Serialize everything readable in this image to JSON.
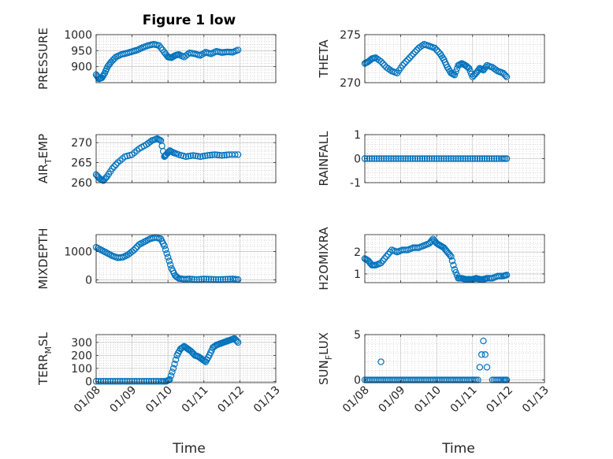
{
  "figure_title": "Figure 1 low",
  "colors": {
    "marker": "#0072BD",
    "axis": "#262626",
    "grid": "#b9b9b9",
    "background": "#ffffff"
  },
  "xlabel": "Time",
  "chart_data": [
    {
      "id": "pressure",
      "type": "scatter",
      "title": "Figure 1 low",
      "ylabel_parts": [
        "PRESSURE"
      ],
      "xlabel": "",
      "ylim": [
        850,
        1000
      ],
      "yticks": [
        900,
        950,
        1000
      ],
      "ytick_labels": [
        "900",
        "950",
        "1000"
      ],
      "xlim": [
        0,
        5
      ],
      "xticks": [
        0,
        1,
        2,
        3,
        4,
        5
      ],
      "xtick_labels": [],
      "series": [
        {
          "name": "PRESSURE",
          "x": [
            0.0,
            0.08,
            0.16,
            0.24,
            0.32,
            0.42,
            0.55,
            0.7,
            0.85,
            1.0,
            1.15,
            1.3,
            1.45,
            1.6,
            1.75,
            1.9,
            2.0,
            2.1,
            2.2,
            2.3,
            2.45,
            2.6,
            2.75,
            2.9,
            3.05,
            3.2,
            3.35,
            3.5,
            3.65,
            3.8,
            3.95
          ],
          "y": [
            875,
            862,
            865,
            880,
            900,
            915,
            930,
            938,
            942,
            947,
            952,
            960,
            966,
            970,
            966,
            945,
            930,
            928,
            935,
            938,
            930,
            943,
            940,
            935,
            945,
            940,
            948,
            944,
            946,
            945,
            952
          ]
        }
      ]
    },
    {
      "id": "theta",
      "type": "scatter",
      "ylabel_parts": [
        "THETA"
      ],
      "xlabel": "",
      "ylim": [
        270,
        275
      ],
      "yticks": [
        270,
        275
      ],
      "ytick_labels": [
        "270",
        "275"
      ],
      "xlim": [
        0,
        5
      ],
      "xticks": [
        0,
        1,
        2,
        3,
        4,
        5
      ],
      "xtick_labels": [],
      "series": [
        {
          "name": "THETA",
          "x": [
            0.0,
            0.1,
            0.2,
            0.3,
            0.45,
            0.6,
            0.75,
            0.9,
            1.05,
            1.2,
            1.35,
            1.5,
            1.65,
            1.8,
            1.95,
            2.1,
            2.2,
            2.3,
            2.4,
            2.5,
            2.6,
            2.7,
            2.8,
            2.9,
            3.0,
            3.1,
            3.2,
            3.3,
            3.4,
            3.55,
            3.7,
            3.85,
            3.95
          ],
          "y": [
            272.0,
            272.2,
            272.5,
            272.6,
            272.2,
            271.6,
            271.2,
            271.0,
            271.8,
            272.4,
            273.0,
            273.6,
            274.0,
            273.8,
            273.6,
            273.0,
            272.4,
            271.6,
            271.0,
            270.8,
            271.8,
            272.0,
            271.8,
            271.5,
            270.6,
            271.0,
            271.5,
            271.3,
            271.8,
            271.6,
            271.2,
            271.0,
            270.6
          ]
        }
      ]
    },
    {
      "id": "airtemp",
      "type": "scatter",
      "ylabel_parts": [
        "AIR",
        "T",
        "EMP"
      ],
      "xlabel": "",
      "ylim": [
        260,
        272
      ],
      "yticks": [
        260,
        265,
        270
      ],
      "ytick_labels": [
        "260",
        "265",
        "270"
      ],
      "xlim": [
        0,
        5
      ],
      "xticks": [
        0,
        1,
        2,
        3,
        4,
        5
      ],
      "xtick_labels": [],
      "series": [
        {
          "name": "AIRTEMP",
          "x": [
            0.0,
            0.1,
            0.2,
            0.3,
            0.45,
            0.6,
            0.8,
            1.0,
            1.2,
            1.4,
            1.55,
            1.7,
            1.8,
            1.9,
            1.95,
            2.05,
            2.15,
            2.3,
            2.5,
            2.7,
            2.9,
            3.1,
            3.3,
            3.5,
            3.7,
            3.95
          ],
          "y": [
            262.0,
            261.0,
            260.5,
            261.5,
            263.5,
            265.0,
            266.5,
            267.0,
            268.5,
            269.5,
            270.5,
            271.0,
            270.5,
            266.5,
            267.0,
            268.0,
            267.5,
            267.0,
            266.5,
            266.8,
            266.5,
            266.8,
            267.0,
            266.8,
            267.0,
            267.0
          ]
        }
      ]
    },
    {
      "id": "rainfall",
      "type": "scatter",
      "ylabel_parts": [
        "RAINFALL"
      ],
      "xlabel": "",
      "ylim": [
        -1,
        1
      ],
      "yticks": [
        -1,
        0,
        1
      ],
      "ytick_labels": [
        "-1",
        "0",
        "1"
      ],
      "xlim": [
        0,
        5
      ],
      "xticks": [
        0,
        1,
        2,
        3,
        4,
        5
      ],
      "xtick_labels": [],
      "series": [
        {
          "name": "RAINFALL",
          "x": [
            0.0,
            0.2,
            0.4,
            0.6,
            0.8,
            1.0,
            1.2,
            1.4,
            1.6,
            1.8,
            2.0,
            2.2,
            2.4,
            2.6,
            2.8,
            3.0,
            3.2,
            3.4,
            3.6,
            3.8,
            3.95
          ],
          "y": [
            0,
            0,
            0,
            0,
            0,
            0,
            0,
            0,
            0,
            0,
            0,
            0,
            0,
            0,
            0,
            0,
            0,
            0,
            0,
            0,
            0
          ]
        }
      ]
    },
    {
      "id": "mixdepth",
      "type": "scatter",
      "ylabel_parts": [
        "MIXDEPTH"
      ],
      "xlabel": "",
      "ylim": [
        -100,
        1600
      ],
      "yticks": [
        0,
        1000
      ],
      "ytick_labels": [
        "0",
        "1000"
      ],
      "xlim": [
        0,
        5
      ],
      "xticks": [
        0,
        1,
        2,
        3,
        4,
        5
      ],
      "xtick_labels": [],
      "series": [
        {
          "name": "MIXDEPTH",
          "x": [
            0.0,
            0.15,
            0.3,
            0.45,
            0.6,
            0.75,
            0.9,
            1.05,
            1.2,
            1.35,
            1.5,
            1.65,
            1.8,
            1.9,
            2.0,
            2.1,
            2.2,
            2.3,
            2.45,
            2.6,
            2.8,
            3.0,
            3.2,
            3.4,
            3.6,
            3.8,
            3.95
          ],
          "y": [
            1150,
            1050,
            950,
            850,
            780,
            800,
            900,
            1050,
            1250,
            1350,
            1450,
            1500,
            1450,
            1200,
            800,
            400,
            150,
            50,
            20,
            30,
            10,
            30,
            20,
            10,
            20,
            30,
            10
          ]
        }
      ]
    },
    {
      "id": "h2omixra",
      "type": "scatter",
      "ylabel_parts": [
        "H2OMIXRA"
      ],
      "xlabel": "",
      "ylim": [
        0.6,
        2.8
      ],
      "yticks": [
        1,
        2
      ],
      "ytick_labels": [
        "1",
        "2"
      ],
      "xlim": [
        0,
        5
      ],
      "xticks": [
        0,
        1,
        2,
        3,
        4,
        5
      ],
      "xtick_labels": [],
      "series": [
        {
          "name": "H2OMIXRA",
          "x": [
            0.0,
            0.1,
            0.2,
            0.3,
            0.45,
            0.6,
            0.75,
            0.9,
            1.05,
            1.2,
            1.35,
            1.5,
            1.65,
            1.8,
            1.9,
            2.0,
            2.1,
            2.2,
            2.3,
            2.4,
            2.5,
            2.6,
            2.7,
            2.8,
            2.9,
            3.0,
            3.1,
            3.2,
            3.3,
            3.4,
            3.55,
            3.7,
            3.85,
            3.95
          ],
          "y": [
            1.7,
            1.6,
            1.4,
            1.4,
            1.5,
            1.8,
            2.1,
            2.0,
            2.1,
            2.1,
            2.2,
            2.2,
            2.3,
            2.4,
            2.6,
            2.4,
            2.3,
            2.2,
            2.0,
            1.8,
            1.2,
            0.8,
            0.8,
            0.75,
            0.75,
            0.75,
            0.8,
            0.75,
            0.75,
            0.8,
            0.8,
            0.9,
            0.9,
            0.95
          ]
        }
      ]
    },
    {
      "id": "terrmsl",
      "type": "scatter",
      "ylabel_parts": [
        "TERR",
        "M",
        "SL"
      ],
      "xlabel": "Time",
      "ylim": [
        -10,
        360
      ],
      "yticks": [
        0,
        100,
        200,
        300
      ],
      "ytick_labels": [
        "0",
        "100",
        "200",
        "300"
      ],
      "xlim": [
        0,
        5
      ],
      "xticks": [
        0,
        1,
        2,
        3,
        4,
        5
      ],
      "xtick_labels": [
        "01/08",
        "01/09",
        "01/10",
        "01/11",
        "01/12",
        "01/13"
      ],
      "series": [
        {
          "name": "TERRMSL",
          "x": [
            0.0,
            0.2,
            0.4,
            0.6,
            0.8,
            1.0,
            1.2,
            1.4,
            1.6,
            1.8,
            1.95,
            2.05,
            2.15,
            2.25,
            2.35,
            2.45,
            2.55,
            2.65,
            2.75,
            2.85,
            2.95,
            3.05,
            3.15,
            3.25,
            3.35,
            3.45,
            3.55,
            3.65,
            3.75,
            3.85,
            3.95
          ],
          "y": [
            0,
            0,
            0,
            0,
            0,
            0,
            0,
            0,
            0,
            0,
            0,
            15,
            100,
            200,
            250,
            270,
            250,
            230,
            200,
            190,
            170,
            150,
            200,
            260,
            280,
            290,
            300,
            310,
            320,
            330,
            300
          ]
        }
      ]
    },
    {
      "id": "sunflux",
      "type": "scatter",
      "ylabel_parts": [
        "SUN",
        "F",
        "LUX"
      ],
      "xlabel": "Time",
      "ylim": [
        -0.3,
        5
      ],
      "yticks": [
        0,
        5
      ],
      "ytick_labels": [
        "0",
        "5"
      ],
      "xlim": [
        0,
        5
      ],
      "xticks": [
        0,
        1,
        2,
        3,
        4,
        5
      ],
      "xtick_labels": [
        "01/08",
        "01/09",
        "01/10",
        "01/11",
        "01/12",
        "01/13"
      ],
      "series": [
        {
          "name": "SUNFLUX",
          "x": [
            0.0,
            0.15,
            0.3,
            0.45,
            0.6,
            0.75,
            0.9,
            1.05,
            1.2,
            1.35,
            1.5,
            1.65,
            1.8,
            1.95,
            2.1,
            2.25,
            2.4,
            2.55,
            2.7,
            2.85,
            3.0,
            3.15,
            3.2,
            3.25,
            3.3,
            3.35,
            3.4,
            3.55,
            3.7,
            3.85,
            3.95,
            0.45
          ],
          "y": [
            0,
            0,
            0,
            0,
            0,
            0,
            0,
            0,
            0,
            0,
            0,
            0,
            0,
            0,
            0,
            0,
            0,
            0,
            0,
            0,
            0,
            0,
            1.4,
            2.8,
            4.3,
            2.8,
            1.4,
            0,
            0,
            0,
            0,
            2.0
          ]
        }
      ]
    }
  ]
}
